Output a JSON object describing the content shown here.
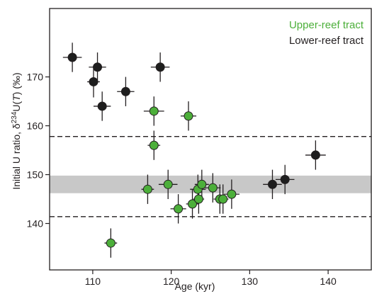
{
  "chart_data": {
    "type": "scatter",
    "xlabel": "Age (kyr)",
    "ylabel_main": "Initial U ratio, δ",
    "ylabel_sup": "234",
    "ylabel_u": "U(",
    "ylabel_t": "T",
    "ylabel_tail": ") (‰)",
    "xlim": [
      104.5,
      145.5
    ],
    "ylim": [
      130.5,
      184.0
    ],
    "xticks": [
      110,
      120,
      130,
      140
    ],
    "yticks": [
      140,
      150,
      160,
      170
    ],
    "legend_position": "top-right",
    "band": {
      "y0": 146.2,
      "y1": 149.8,
      "color": "#c8c8c8"
    },
    "dashed_lines": [
      157.8,
      141.4
    ],
    "series": [
      {
        "name": "Upper-reef tract",
        "color": "#4caf3a",
        "points": [
          {
            "x": 117.8,
            "y": 163.0,
            "xerr": 1.3,
            "yerr": 3.0
          },
          {
            "x": 122.2,
            "y": 162.0,
            "xerr": 1.0,
            "yerr": 3.0
          },
          {
            "x": 117.8,
            "y": 156.0,
            "xerr": 0.8,
            "yerr": 3.0
          },
          {
            "x": 117.0,
            "y": 147.0,
            "xerr": 0.8,
            "yerr": 3.0
          },
          {
            "x": 119.6,
            "y": 148.0,
            "xerr": 1.2,
            "yerr": 3.0
          },
          {
            "x": 120.9,
            "y": 143.0,
            "xerr": 1.0,
            "yerr": 3.0
          },
          {
            "x": 122.7,
            "y": 144.0,
            "xerr": 0.8,
            "yerr": 3.0
          },
          {
            "x": 123.4,
            "y": 147.0,
            "xerr": 1.0,
            "yerr": 3.0
          },
          {
            "x": 123.9,
            "y": 148.0,
            "xerr": 0.9,
            "yerr": 3.0
          },
          {
            "x": 123.5,
            "y": 145.0,
            "xerr": 0.7,
            "yerr": 3.0
          },
          {
            "x": 125.3,
            "y": 147.3,
            "xerr": 1.0,
            "yerr": 3.0
          },
          {
            "x": 126.2,
            "y": 145.0,
            "xerr": 0.8,
            "yerr": 3.0
          },
          {
            "x": 126.6,
            "y": 145.0,
            "xerr": 0.7,
            "yerr": 3.0
          },
          {
            "x": 127.7,
            "y": 146.0,
            "xerr": 1.0,
            "yerr": 3.0
          },
          {
            "x": 112.3,
            "y": 136.0,
            "xerr": 0.8,
            "yerr": 3.0
          }
        ]
      },
      {
        "name": "Lower-reef tract",
        "color": "#1e1e1e",
        "points": [
          {
            "x": 107.4,
            "y": 174.0,
            "xerr": 1.2,
            "yerr": 3.0
          },
          {
            "x": 110.1,
            "y": 169.0,
            "xerr": 0.8,
            "yerr": 3.2
          },
          {
            "x": 110.6,
            "y": 172.0,
            "xerr": 1.1,
            "yerr": 3.0
          },
          {
            "x": 111.2,
            "y": 164.0,
            "xerr": 1.1,
            "yerr": 3.0
          },
          {
            "x": 114.2,
            "y": 167.0,
            "xerr": 1.1,
            "yerr": 3.0
          },
          {
            "x": 118.6,
            "y": 172.0,
            "xerr": 1.2,
            "yerr": 3.0
          },
          {
            "x": 132.9,
            "y": 148.0,
            "xerr": 1.2,
            "yerr": 3.0
          },
          {
            "x": 134.5,
            "y": 149.0,
            "xerr": 1.2,
            "yerr": 3.0
          },
          {
            "x": 138.4,
            "y": 154.0,
            "xerr": 1.3,
            "yerr": 3.0
          }
        ]
      }
    ]
  }
}
